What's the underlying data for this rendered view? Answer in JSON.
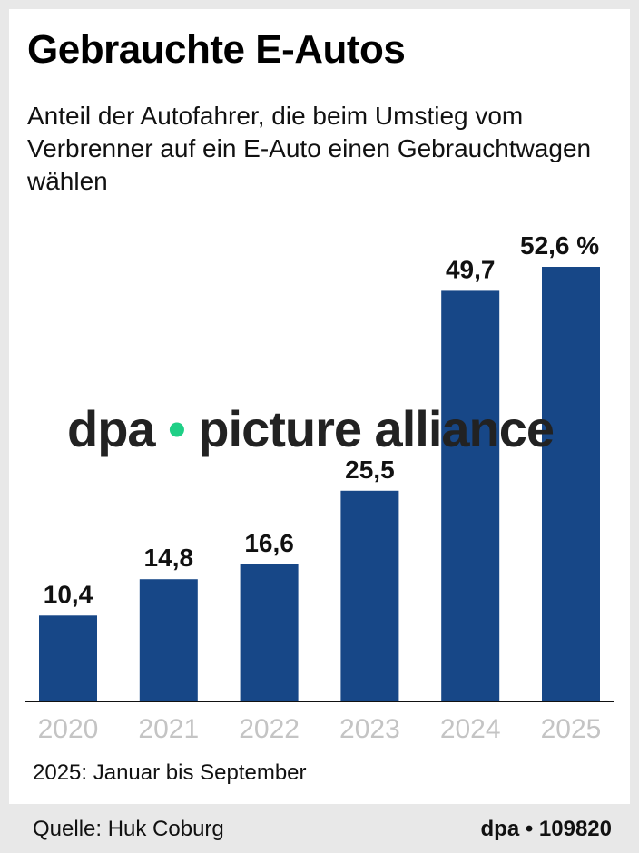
{
  "title": "Gebrauchte E-Autos",
  "subtitle": "Anteil der Autofahrer, die beim Umstieg vom Verbrenner auf ein E-Auto einen Gebrauchtwagen wählen",
  "note": "2025: Januar bis September",
  "source": "Quelle: Huk Coburg",
  "id": "dpa • 109820",
  "watermark": {
    "left": "dpa",
    "dot": "•",
    "right": "picture alliance"
  },
  "chart_data": {
    "type": "bar",
    "categories": [
      "2020",
      "2021",
      "2022",
      "2023",
      "2024",
      "2025"
    ],
    "values": [
      10.4,
      14.8,
      16.6,
      25.5,
      49.7,
      52.6
    ],
    "data_labels": [
      "10,4",
      "14,8",
      "16,6",
      "25,5",
      "49,7",
      "52,6 %"
    ],
    "unit": "%",
    "ylim": [
      0,
      52.6
    ],
    "grid": false,
    "bar_color": "#174787",
    "tick_color": "#c4c4c4"
  }
}
